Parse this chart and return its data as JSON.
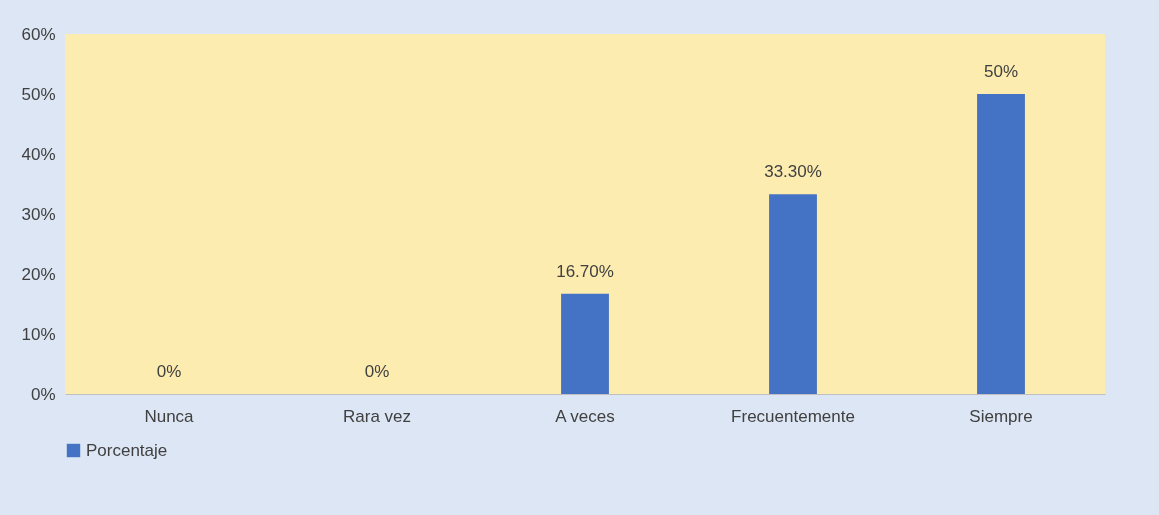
{
  "chart_data": {
    "type": "bar",
    "categories": [
      "Nunca",
      "Rara vez",
      "A veces",
      "Frecuentemente",
      "Siempre"
    ],
    "series": [
      {
        "name": "Porcentaje",
        "color": "#4472c4",
        "values": [
          0,
          0,
          16.7,
          33.3,
          50
        ],
        "value_labels": [
          "0%",
          "0%",
          "16.70%",
          "33.30%",
          "50%"
        ]
      }
    ],
    "ylim": [
      0,
      60
    ],
    "yticks": [
      {
        "value": 0,
        "label": "0%"
      },
      {
        "value": 10,
        "label": "10%"
      },
      {
        "value": 20,
        "label": "20%"
      },
      {
        "value": 30,
        "label": "30%"
      },
      {
        "value": 40,
        "label": "40%"
      },
      {
        "value": 50,
        "label": "50%"
      },
      {
        "value": 60,
        "label": "60%"
      }
    ],
    "grid": false,
    "legend": "bottom"
  }
}
